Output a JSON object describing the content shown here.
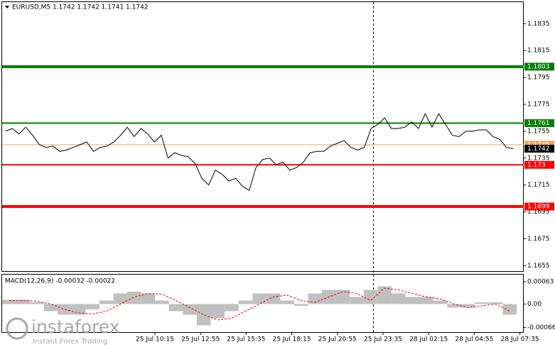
{
  "chart_data": [
    {
      "type": "line",
      "title": "EURUSD,M5  1.1742 1.1742 1.1741 1.1742",
      "series": [
        {
          "name": "EURUSD",
          "color": "#000000",
          "values": [
            1.1755,
            1.1757,
            1.1753,
            1.1758,
            1.1752,
            1.1745,
            1.1743,
            1.1744,
            1.174,
            1.1741,
            1.1743,
            1.1745,
            1.1747,
            1.174,
            1.1743,
            1.1744,
            1.1747,
            1.1752,
            1.1758,
            1.1751,
            1.1757,
            1.1753,
            1.1747,
            1.1752,
            1.1735,
            1.1739,
            1.1737,
            1.1736,
            1.1731,
            1.172,
            1.1715,
            1.1726,
            1.1723,
            1.1718,
            1.172,
            1.1714,
            1.1711,
            1.1728,
            1.1734,
            1.1735,
            1.173,
            1.1732,
            1.1726,
            1.1728,
            1.1732,
            1.1739,
            1.174,
            1.174,
            1.1744,
            1.1746,
            1.1748,
            1.1743,
            1.1741,
            1.1743,
            1.1757,
            1.176,
            1.1765,
            1.1757,
            1.1757,
            1.1758,
            1.1762,
            1.1757,
            1.1768,
            1.1758,
            1.1768,
            1.176,
            1.1752,
            1.1751,
            1.1755,
            1.1755,
            1.1756,
            1.1756,
            1.1751,
            1.1749,
            1.1743,
            1.1742
          ]
        }
      ],
      "ylim": [
        1.1651,
        1.1851
      ],
      "yticks": [
        1.1835,
        1.1815,
        1.1795,
        1.1775,
        1.1755,
        1.1735,
        1.1715,
        1.1695,
        1.1675,
        1.1655
      ],
      "grid": false,
      "levels": [
        {
          "value": 1.1803,
          "color": "#008000",
          "width": 4
        },
        {
          "value": 1.1761,
          "color": "#008000",
          "width": 2
        },
        {
          "value": 1.1745,
          "color": "#f4a460",
          "width": 1
        },
        {
          "value": 1.173,
          "color": "#ff0000",
          "width": 2
        },
        {
          "value": 1.1699,
          "color": "#ff0000",
          "width": 4
        }
      ],
      "xlabels": [
        "25 Jul 10:15",
        "25 Jul 12:55",
        "25 Jul 15:35",
        "25 Jul 18:15",
        "25 Jul 20:55",
        "25 Jul 23:35",
        "28 Jul 02:15",
        "28 Jul 04:55",
        "28 Jul 07:35"
      ]
    },
    {
      "type": "bar",
      "title": "MACD(12,26,9) -0.00032 -0.00022",
      "series": [
        {
          "name": "MACD",
          "color": "#c0c0c0",
          "values": [
            0.00012,
            0.00012,
            5e-05,
            -0.0002,
            -0.0003,
            -0.0003,
            -0.00015,
            0.0001,
            0.0003,
            0.00035,
            0.0003,
            0.0001,
            -0.0002,
            -0.0003,
            -0.0006,
            -0.0004,
            -0.0002,
            0.0001,
            0.0003,
            0.0003,
            0.0001,
            -5e-05,
            0.0003,
            0.0004,
            0.0004,
            0.0002,
            0.0004,
            0.0005,
            0.0003,
            0.0002,
            0.0002,
            0.0001,
            -0.0001,
            -0.0001,
            5e-05,
            5e-05,
            -0.0003
          ]
        },
        {
          "name": "Signal",
          "color": "#ff0000",
          "values": [
            0.0001,
            0.0001,
            8e-05,
            0,
            -0.00015,
            -0.00025,
            -0.00028,
            -0.0002,
            0,
            0.0002,
            0.0003,
            0.00028,
            0.0001,
            -0.0001,
            -0.0003,
            -0.00045,
            -0.0004,
            -0.0002,
            0,
            0.0002,
            0.00025,
            0.0001,
            5e-05,
            0.0002,
            0.00035,
            0.0003,
            0.0001,
            0.00045,
            0.0004,
            0.0003,
            0.0002,
            0.00015,
            0,
            -0.0001,
            -5e-05,
            0,
            -0.0002
          ]
        }
      ],
      "ylim": [
        -0.00079,
        0.00083
      ],
      "yticks": [
        0.00063,
        {
          "value": 0,
          "label": "0.00"
        },
        -0.00066
      ]
    }
  ],
  "watermark": {
    "brand": "instaforex",
    "tagline": "Instant Forex Trading"
  }
}
